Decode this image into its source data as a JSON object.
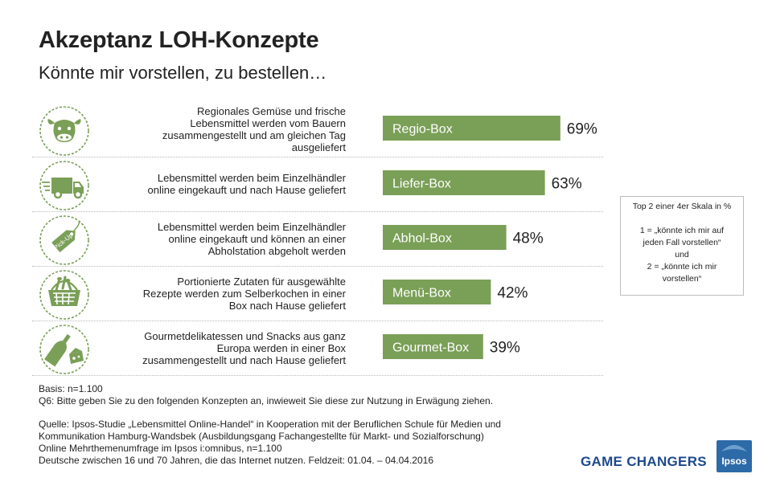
{
  "header": {
    "title": "Akzeptanz LOH-Konzepte",
    "subtitle": "Könnte mir vorstellen, zu bestellen…"
  },
  "chart_data": {
    "type": "bar",
    "orientation": "horizontal",
    "categories": [
      "Regio-Box",
      "Liefer-Box",
      "Abhol-Box",
      "Menü-Box",
      "Gourmet-Box"
    ],
    "values": [
      69,
      63,
      48,
      42,
      39
    ],
    "value_labels": [
      "69%",
      "63%",
      "48%",
      "42%",
      "39%"
    ],
    "xlim": [
      0,
      100
    ],
    "bar_color": "#7a9f57",
    "grid": false
  },
  "rows": [
    {
      "icon": "cow-icon",
      "description_lines": [
        "Regionales Gemüse und frische",
        "Lebensmittel werden vom Bauern",
        "zusammengestellt und am gleichen Tag",
        "ausgeliefert"
      ]
    },
    {
      "icon": "delivery-van-icon",
      "description_lines": [
        "Lebensmittel werden beim Einzelhändler",
        "online eingekauft und nach Hause geliefert"
      ]
    },
    {
      "icon": "pickup-tag-icon",
      "tag_text": "Pick-Up",
      "description_lines": [
        "Lebensmittel werden beim Einzelhändler",
        "online eingekauft und können an einer",
        "Abholstation abgeholt werden"
      ]
    },
    {
      "icon": "shopping-basket-icon",
      "description_lines": [
        "Portionierte Zutaten für ausgewählte",
        "Rezepte werden zum Selberkochen in einer",
        "Box nach Hause geliefert"
      ]
    },
    {
      "icon": "wine-cheese-icon",
      "description_lines": [
        "Gourmetdelikatessen und Snacks aus ganz",
        "Europa werden in einer Box",
        "zusammengestellt und nach Hause geliefert"
      ]
    }
  ],
  "legend_box": {
    "lines": [
      "Top 2 einer 4er Skala in %",
      "",
      "1 = „könnte ich mir auf",
      "jeden Fall vorstellen“",
      "und",
      "2 = „könnte ich mir",
      "vorstellen“"
    ]
  },
  "notes": {
    "basis": "Basis: n=1.100",
    "question": "Q6: Bitte geben Sie zu den folgenden Konzepten an, inwieweit Sie diese zur Nutzung in Erwägung ziehen.",
    "source_lines": [
      "Quelle: Ipsos-Studie „Lebensmittel Online-Handel“ in Kooperation mit der Beruflichen Schule für Medien und",
      "Kommunikation Hamburg-Wandsbek (Ausbildungsgang Fachangestellte für Markt- und Sozialforschung)",
      "Online Mehrthemenumfrage im Ipsos i:omnibus, n=1.100",
      "Deutsche zwischen 16 und 70 Jahren, die das Internet nutzen. Feldzeit: 01.04. – 04.04.2016"
    ]
  },
  "branding": {
    "tagline": "GAME CHANGERS",
    "logo_text": "Ipsos",
    "logo_color": "#2d6aa8",
    "tagline_color": "#1d4a8c"
  }
}
